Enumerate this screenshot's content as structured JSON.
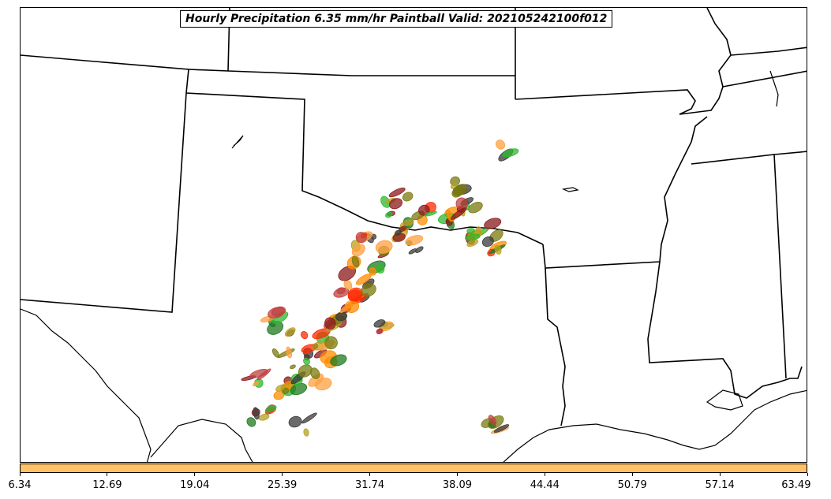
{
  "title": "Hourly Precipitation 6.35 mm/hr Paintball Valid: 202105242100f012",
  "colorbar": {
    "color": "#ffc266",
    "ticks": [
      "6.34",
      "12.69",
      "19.04",
      "25.39",
      "31.74",
      "38.09",
      "44.44",
      "50.79",
      "57.14",
      "63.49"
    ]
  },
  "ensemble_colors": [
    "#8b1a1a",
    "#3a3a3a",
    "#ff8c00",
    "#ff2a00",
    "#2db82d",
    "#1f7a1f",
    "#b8a020",
    "#ffa040",
    "#7a7a10",
    "#c04040"
  ]
}
